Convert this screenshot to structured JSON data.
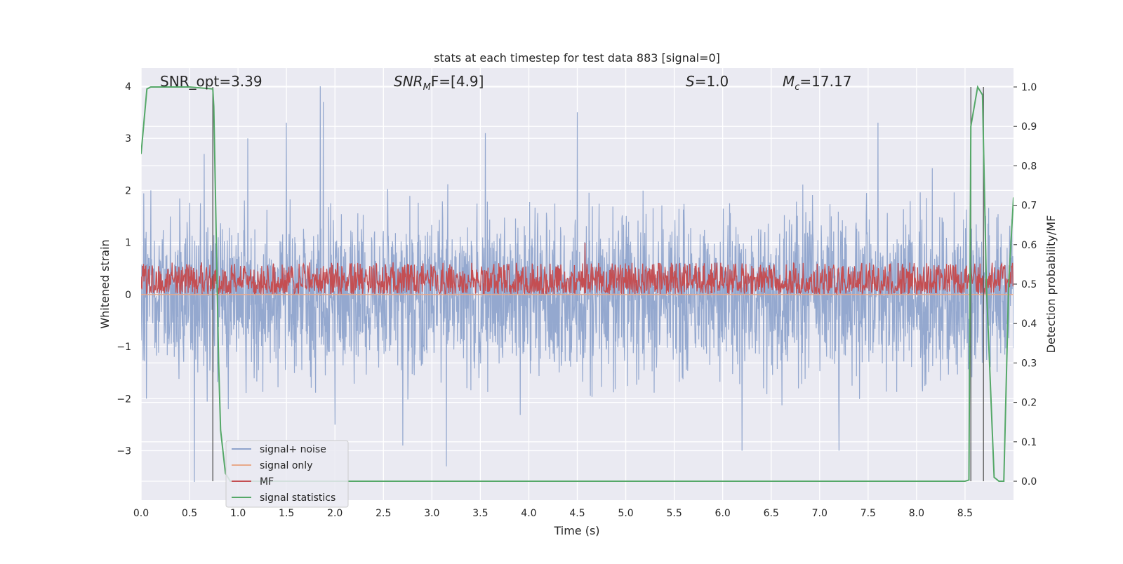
{
  "chart_data": {
    "type": "line",
    "title": "stats at each timestep for test data 883 [signal=0]",
    "xlabel": "Time (s)",
    "ylabel_left": "Whitened strain",
    "ylabel_right": "Detection probability/MF",
    "xlim": [
      0.0,
      9.0
    ],
    "ylim_left": [
      -3.95,
      4.35
    ],
    "ylim_right": [
      -0.048,
      1.048
    ],
    "x_ticks": [
      "0.0",
      "0.5",
      "1.0",
      "1.5",
      "2.0",
      "2.5",
      "3.0",
      "3.5",
      "4.0",
      "4.5",
      "5.0",
      "5.5",
      "6.0",
      "6.5",
      "7.0",
      "7.5",
      "8.0",
      "8.5"
    ],
    "y_ticks_left": [
      "4",
      "3",
      "2",
      "1",
      "0",
      "−1",
      "−2",
      "−3"
    ],
    "y_ticks_right": [
      "1.0",
      "0.9",
      "0.8",
      "0.7",
      "0.6",
      "0.5",
      "0.4",
      "0.3",
      "0.2",
      "0.1",
      "0.0"
    ],
    "grid": true,
    "legend_position": "lower-left",
    "annotations": {
      "snr_opt": "SNR_opt=3.39",
      "snr_mf_main": "SNR",
      "snr_mf_sub": "M",
      "snr_mf_rest": "F=[4.9]",
      "s_main": "S",
      "s_rest": "=1.0",
      "mc_main": "M",
      "mc_sub": "c",
      "mc_rest": "=17.17"
    },
    "series": [
      {
        "name": "signal+ noise",
        "axis": "left",
        "color": "#8fa4cc",
        "kind": "noise",
        "typical_abs_amplitude": 1.5,
        "peaks": [
          [
            0.1,
            2.0
          ],
          [
            0.55,
            -3.6
          ],
          [
            0.65,
            2.7
          ],
          [
            0.9,
            -2.2
          ],
          [
            1.1,
            3.0
          ],
          [
            1.5,
            3.3
          ],
          [
            1.85,
            4.0
          ],
          [
            1.88,
            3.7
          ],
          [
            2.0,
            -2.5
          ],
          [
            3.15,
            -3.3
          ],
          [
            3.55,
            3.1
          ],
          [
            4.5,
            3.5
          ],
          [
            7.6,
            3.3
          ],
          [
            7.2,
            -3.0
          ],
          [
            6.2,
            -3.0
          ],
          [
            2.7,
            -2.9
          ]
        ]
      },
      {
        "name": "signal only",
        "axis": "left",
        "color": "#e8a98a",
        "values_constant": 0.0
      },
      {
        "name": "MF",
        "axis": "right",
        "color": "#c44e52",
        "kind": "noise",
        "baseline": 0.5,
        "typical_range": [
          0.475,
          0.555
        ],
        "peaks": [
          [
            4.58,
            0.605
          ]
        ]
      },
      {
        "name": "signal statistics",
        "axis": "right",
        "color": "#55a868",
        "x": [
          0.0,
          0.06,
          0.1,
          0.5,
          0.74,
          0.75,
          0.8,
          0.82,
          0.87,
          0.92,
          1.0,
          8.0,
          8.5,
          8.54,
          8.56,
          8.63,
          8.68,
          8.72,
          8.8,
          8.85,
          8.9,
          8.95,
          9.0
        ],
        "y": [
          0.83,
          0.995,
          1.0,
          1.0,
          0.995,
          0.95,
          0.3,
          0.13,
          0.02,
          0.0,
          0.0,
          0.0,
          0.0,
          0.003,
          0.9,
          1.0,
          0.98,
          0.5,
          0.01,
          0.0,
          0.0,
          0.5,
          0.72
        ]
      }
    ],
    "vertical_markers_x": [
      0.74,
      8.56,
      8.69
    ]
  }
}
